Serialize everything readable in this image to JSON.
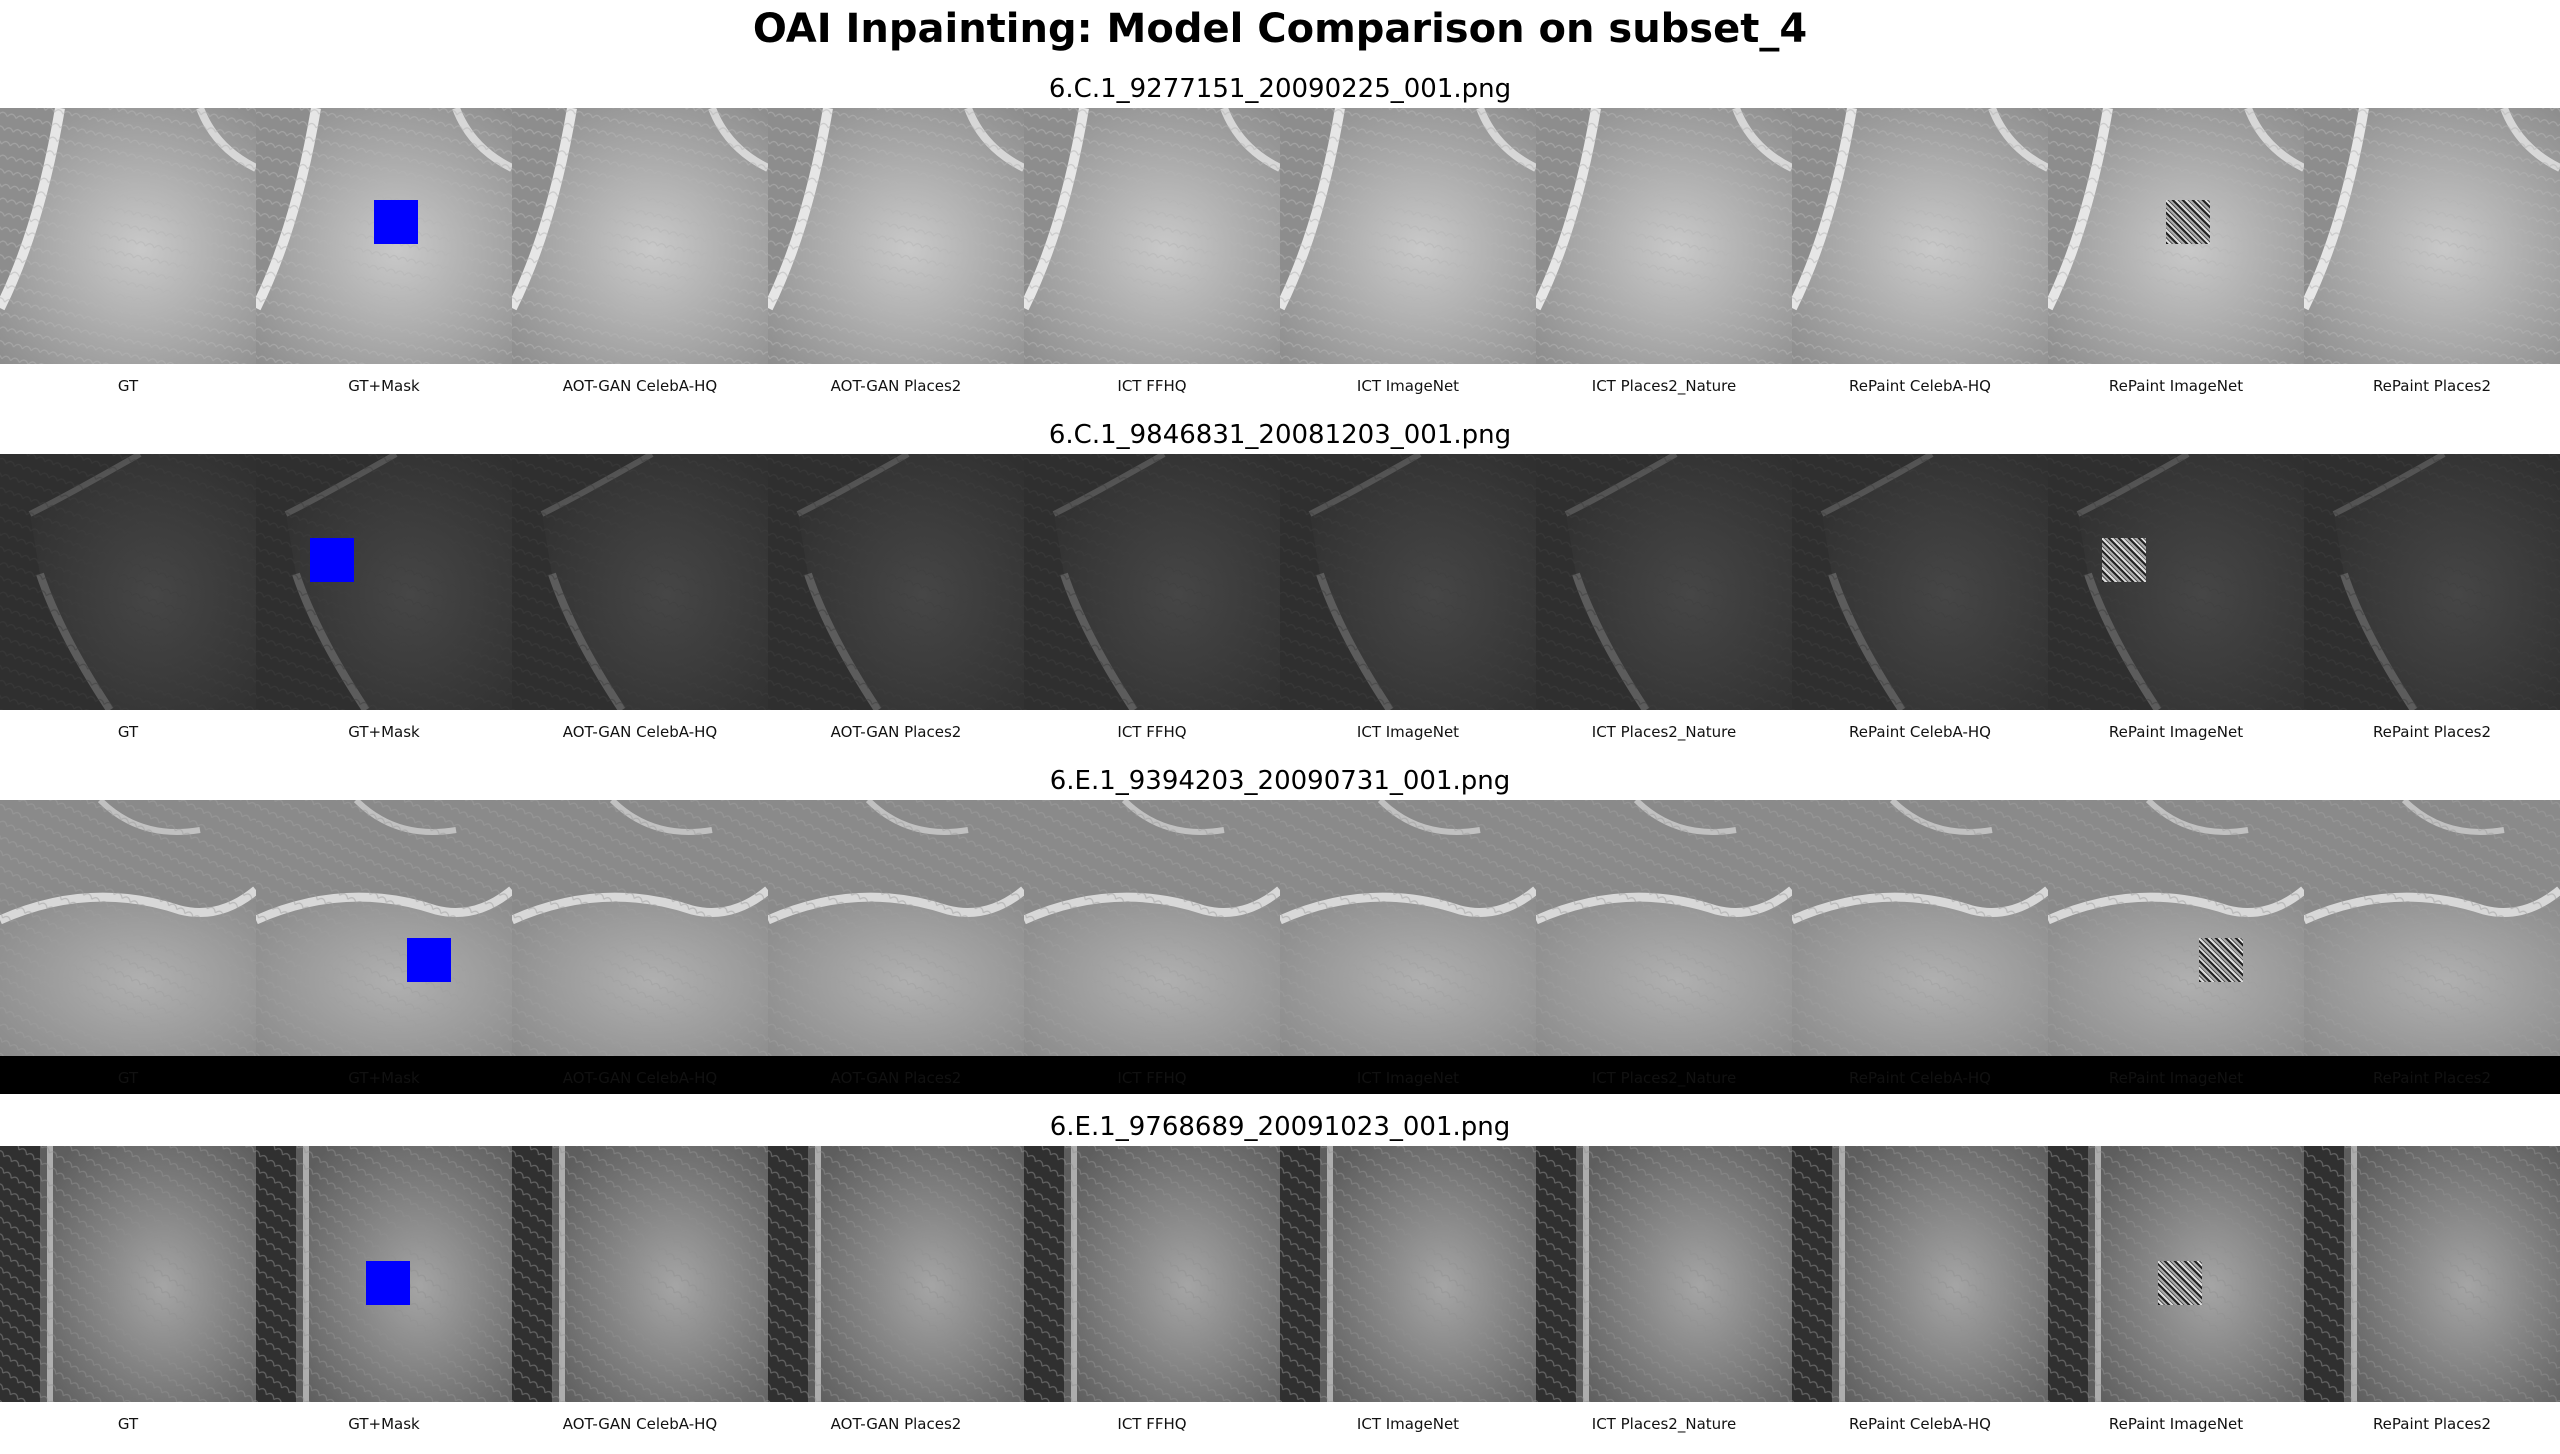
{
  "figure_title": "OAI Inpainting: Model Comparison on subset_4",
  "columns": [
    "GT",
    "GT+Mask",
    "AOT-GAN CelebA-HQ",
    "AOT-GAN Places2",
    "ICT FFHQ",
    "ICT ImageNet",
    "ICT Places2_Nature",
    "RePaint CelebA-HQ",
    "RePaint ImageNet",
    "RePaint Places2"
  ],
  "rows": [
    {
      "filename": "6.C.1_9277151_20090225_001.png",
      "tone": "bright",
      "mask_frac": [
        0.46,
        0.36
      ]
    },
    {
      "filename": "6.C.1_9846831_20081203_001.png",
      "tone": "dark",
      "mask_frac": [
        0.21,
        0.33
      ]
    },
    {
      "filename": "6.E.1_9394203_20090731_001.png",
      "tone": "mid",
      "mask_frac": [
        0.59,
        0.54
      ]
    },
    {
      "filename": "6.E.1_9768689_20091023_001.png",
      "tone": "gray",
      "mask_frac": [
        0.43,
        0.45
      ]
    }
  ],
  "colors": {
    "mask": "#0000ff",
    "background": "#ffffff"
  }
}
